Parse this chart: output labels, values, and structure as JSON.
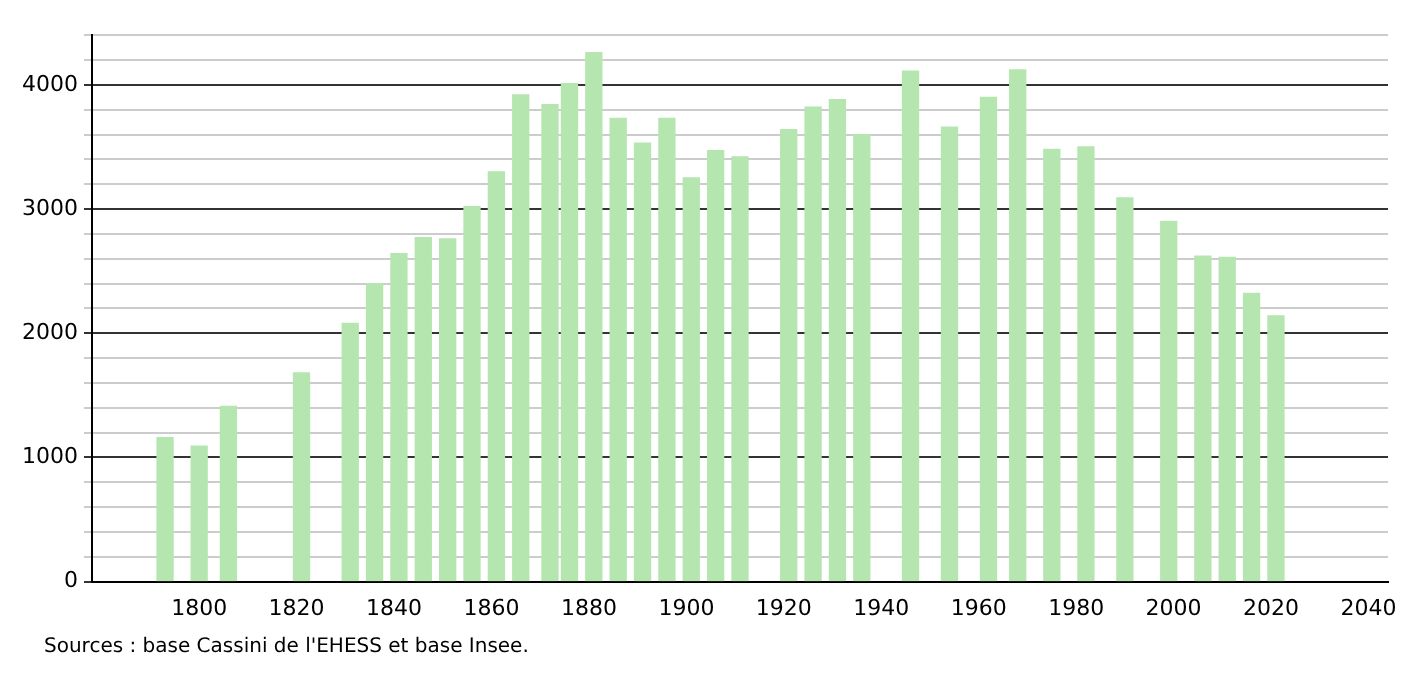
{
  "chart_data": {
    "type": "bar",
    "x": [
      1793,
      1800,
      1806,
      1821,
      1831,
      1836,
      1841,
      1846,
      1851,
      1856,
      1861,
      1866,
      1872,
      1876,
      1881,
      1886,
      1891,
      1896,
      1901,
      1906,
      1911,
      1921,
      1926,
      1931,
      1936,
      1946,
      1954,
      1962,
      1968,
      1975,
      1982,
      1990,
      1999,
      2006,
      2011,
      2016,
      2021
    ],
    "values": [
      1160,
      1090,
      1410,
      1680,
      2080,
      2400,
      2640,
      2770,
      2760,
      3020,
      3300,
      3920,
      3840,
      4010,
      4260,
      3730,
      3530,
      3730,
      3250,
      3470,
      3420,
      3640,
      3820,
      3880,
      3600,
      4110,
      3660,
      3900,
      4120,
      3480,
      3500,
      3090,
      2900,
      2620,
      2610,
      2320,
      2140
    ],
    "color": "#b5e6b0",
    "xlim": [
      1778,
      2044
    ],
    "xticks": [
      1800,
      1820,
      1840,
      1860,
      1880,
      1900,
      1920,
      1940,
      1960,
      1980,
      2000,
      2020,
      2040
    ],
    "ylim": [
      0,
      4400
    ],
    "yticks": [
      0,
      {
        "value": 200,
        "label": null
      },
      {
        "value": 400,
        "label": null
      },
      {
        "value": 600,
        "label": null
      },
      {
        "value": 800,
        "label": null
      },
      1000,
      {
        "value": 1200,
        "label": null
      },
      {
        "value": 1400,
        "label": null
      },
      {
        "value": 1600,
        "label": null
      },
      {
        "value": 1800,
        "label": null
      },
      2000,
      {
        "value": 2200,
        "label": null
      },
      {
        "value": 2400,
        "label": null
      },
      {
        "value": 2600,
        "label": null
      },
      {
        "value": 2800,
        "label": null
      },
      3000,
      {
        "value": 3200,
        "label": null
      },
      {
        "value": 3400,
        "label": null
      },
      {
        "value": 3600,
        "label": null
      },
      {
        "value": 3800,
        "label": null
      },
      4000,
      {
        "value": 4200,
        "label": null
      },
      {
        "value": 4400,
        "label": null
      }
    ],
    "grid": "y",
    "legend": false,
    "annotations": [
      "Sources : base Cassini de l'EHESS et base Insee."
    ]
  }
}
